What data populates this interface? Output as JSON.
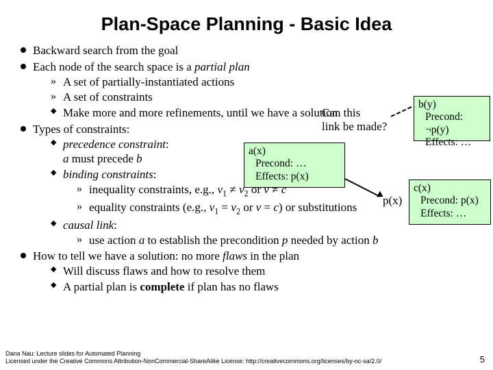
{
  "title": "Plan-Space Planning - Basic Idea",
  "bullets": {
    "b1": "Backward search from the goal",
    "b2": "Each node of the search space is a ",
    "b2_it": "partial plan",
    "b2a": "A set of partially-instantiated actions",
    "b2b": "A set of constraints",
    "b2c": "Make more and more refinements, until we have a solution",
    "b3": "Types of constraints:",
    "b3a_it": "precedence constraint",
    "b3a_tail": ":",
    "b3a_line2_pre": "a",
    "b3a_line2_mid": " must precede ",
    "b3a_line2_post": "b",
    "b3b_it": "binding constraints",
    "b3b_tail": ":",
    "b3b1_pre": "inequality constraints, e.g., ",
    "b3b1_v1": "v",
    "b3b1_s1": "1",
    "b3b1_ne": " ≠ ",
    "b3b1_v2": "v",
    "b3b1_s2": "2",
    "b3b1_or": " or ",
    "b3b1_v3": "v",
    "b3b1_nec": " ≠ ",
    "b3b1_c": "c",
    "b3b2_pre": "equality constraints (e.g., ",
    "b3b2_v1": "v",
    "b3b2_s1": "1",
    "b3b2_eq": " = ",
    "b3b2_v2": "v",
    "b3b2_s2": "2",
    "b3b2_or": " or ",
    "b3b2_v3": "v",
    "b3b2_eqc": " = ",
    "b3b2_c": "c",
    "b3b2_tail": ") or substitutions",
    "b3c_it": "causal link",
    "b3c_tail": ":",
    "b3c1_pre": "use action ",
    "b3c1_a": "a",
    "b3c1_mid": " to establish the precondition ",
    "b3c1_p": "p",
    "b3c1_mid2": " needed by action ",
    "b3c1_b": "b",
    "b4_pre": "How to tell we have a solution: no more ",
    "b4_it": "flaws",
    "b4_tail": " in the plan",
    "b4a": "Will discuss flaws and how to resolve them",
    "b4b_pre": "A partial plan is ",
    "b4b_bold": "complete",
    "b4b_tail": " if plan has no flaws"
  },
  "question": {
    "l1": "Can this",
    "l2": "link be made?"
  },
  "box_a": {
    "name": "a(x)",
    "l1": "Precond: …",
    "l2": "Effects: p(x)"
  },
  "box_b": {
    "name": "b(y)",
    "l1": "Precond: ¬p(y)",
    "l2": "Effects: …"
  },
  "box_c": {
    "name": "c(x)",
    "l1": "Precond: p(x)",
    "l2": "Effects: …"
  },
  "pxlabel": "p(x)",
  "footer": {
    "l1": "Dana Nau: Lecture slides for Automated Planning",
    "l2": "Licensed under the Creative Commons Attribution-NonCommercial-ShareAlike License: http://creativecommons.org/licenses/by-nc-sa/2.0/"
  },
  "pageno": "5",
  "colors": {
    "boxbg": "#ccffcc"
  }
}
